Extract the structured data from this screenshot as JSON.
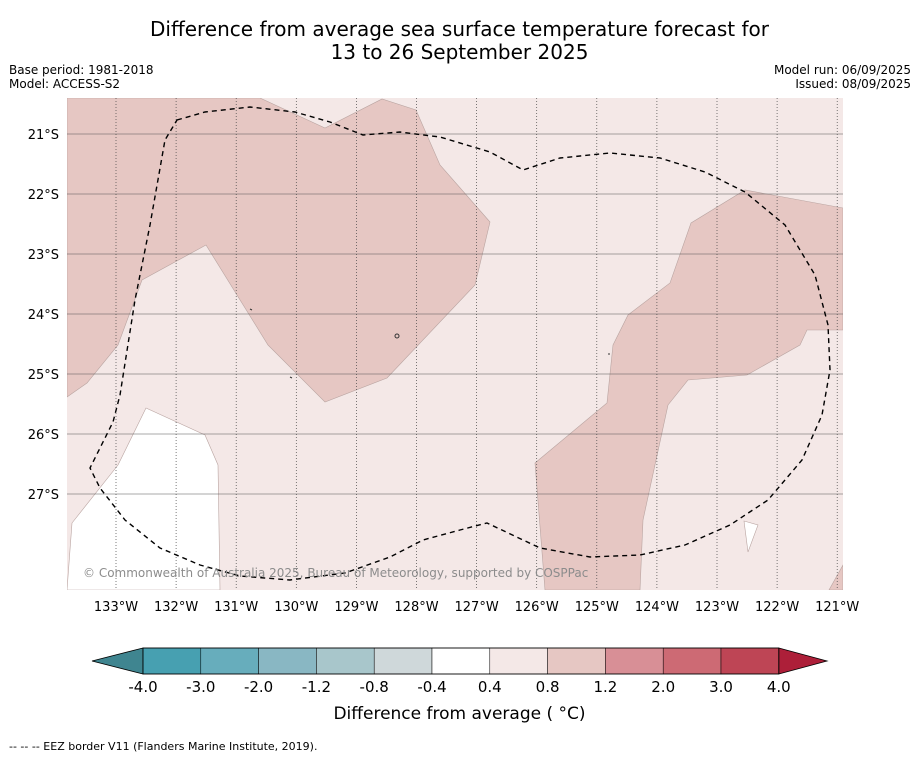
{
  "header": {
    "title_line1": "Difference from average sea surface temperature forecast for",
    "title_line2": "13 to 26 September 2025",
    "base_period": "Base period: 1981-2018",
    "model": "Model: ACCESS-S2",
    "model_run": "Model run: 06/09/2025",
    "issued": "Issued: 08/09/2025"
  },
  "map": {
    "lon_labels": [
      "133°W",
      "132°W",
      "131°W",
      "130°W",
      "129°W",
      "128°W",
      "127°W",
      "126°W",
      "125°W",
      "124°W",
      "123°W",
      "122°W",
      "121°W"
    ],
    "lat_labels": [
      "21°S",
      "22°S",
      "23°S",
      "24°S",
      "25°S",
      "26°S",
      "27°S"
    ],
    "copyright": "© Commonwealth of Australia 2025, Bureau of Meteorology, supported by COSPPac",
    "colors": {
      "band_04_08": "#f4e8e7",
      "band_08_12": "#e6c7c3",
      "neutral": "#ffffff"
    }
  },
  "colorbar": {
    "ticks": [
      "-4.0",
      "-3.0",
      "-2.0",
      "-1.2",
      "-0.8",
      "-0.4",
      "0.4",
      "0.8",
      "1.2",
      "2.0",
      "3.0",
      "4.0"
    ],
    "colors": [
      "#47a0b1",
      "#67adbc",
      "#89b7c3",
      "#a8c6cb",
      "#cfd8da",
      "#ffffff",
      "#f4e8e7",
      "#e6c7c3",
      "#d88f96",
      "#cd6a74",
      "#be4555"
    ],
    "under_color": "#3f8590",
    "over_color": "#ad1f39",
    "label": "Difference from average ( °C)"
  },
  "footer": {
    "eez_note": "--  --  -- EEZ border V11 (Flanders Marine Institute, 2019)."
  }
}
